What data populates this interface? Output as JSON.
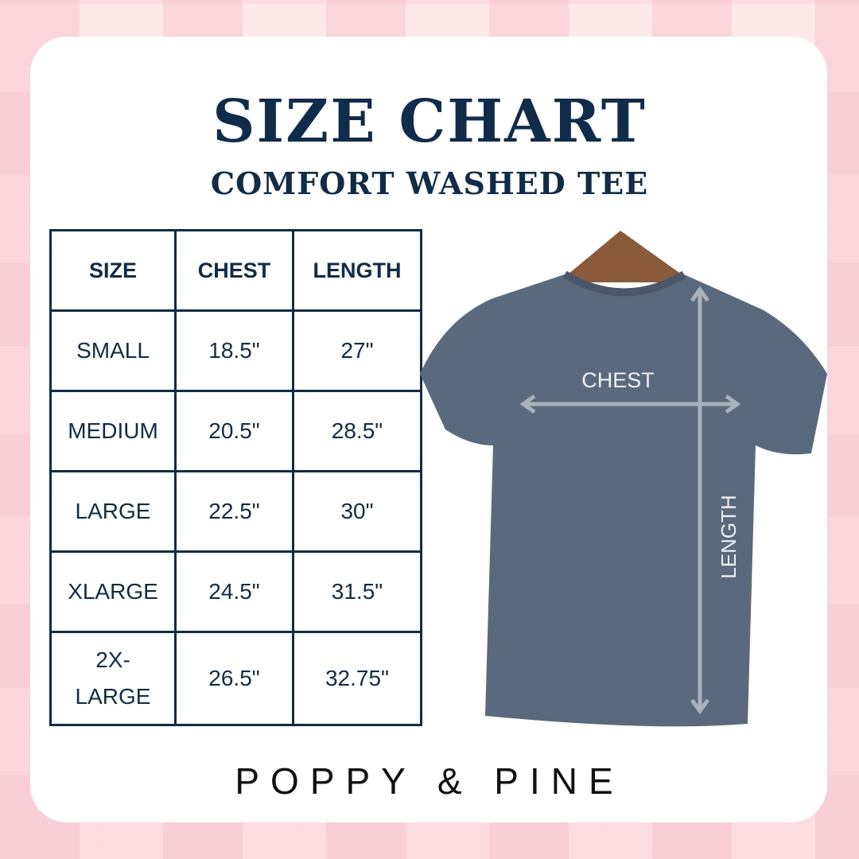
{
  "title": "SIZE CHART",
  "subtitle": "COMFORT WASHED TEE",
  "table": {
    "headers": [
      "SIZE",
      "CHEST",
      "LENGTH"
    ],
    "rows": [
      [
        "SMALL",
        "18.5\"",
        "27\""
      ],
      [
        "MEDIUM",
        "20.5\"",
        "28.5\""
      ],
      [
        "LARGE",
        "22.5\"",
        "30\""
      ],
      [
        "XLARGE",
        "24.5\"",
        "31.5\""
      ],
      [
        "2X-LARGE",
        "26.5\"",
        "32.75\""
      ]
    ]
  },
  "shirt": {
    "chest_label": "CHEST",
    "length_label": "LENGTH",
    "color": "#5a6a7e"
  },
  "brand": "POPPY & PINE",
  "colors": {
    "navy": "#0f2d4b",
    "background": "#fde4e6"
  }
}
